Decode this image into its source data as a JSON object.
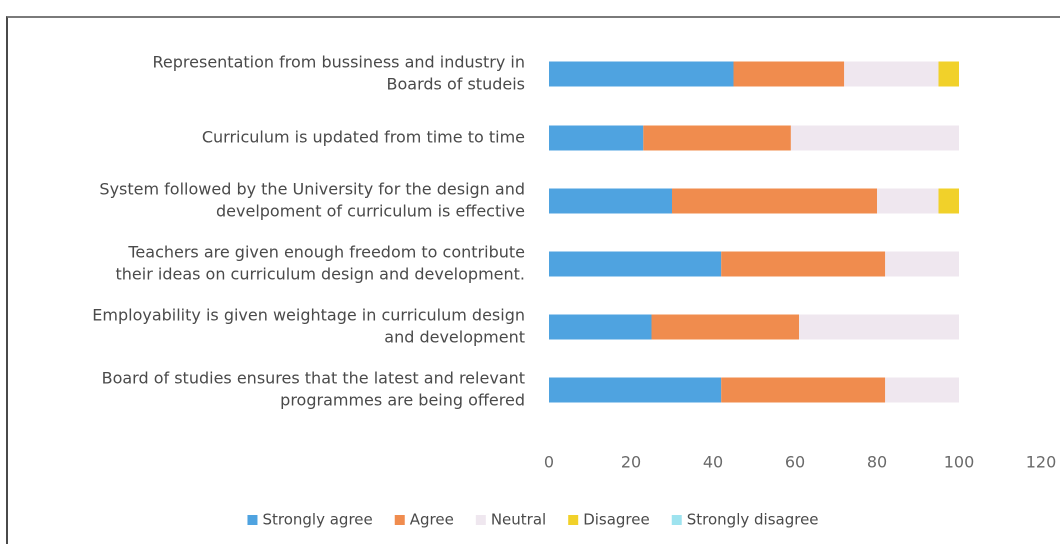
{
  "chart_data": {
    "type": "bar",
    "orientation": "horizontal",
    "stacked": true,
    "title": "",
    "xlabel": "",
    "ylabel": "",
    "xlim": [
      0,
      120
    ],
    "xticks": [
      "0",
      "20",
      "40",
      "60",
      "80",
      "100",
      "120"
    ],
    "grid": false,
    "legend_position": "bottom",
    "categories": [
      [
        "Representation  from bussiness and industry in",
        "Boards of studeis"
      ],
      [
        "Curriculum is updated from time to time"
      ],
      [
        "System followed by the University for the design and",
        "develpoment of curriculum is effective"
      ],
      [
        "Teachers are given enough freedom to contribute",
        "their ideas on curriculum design and development."
      ],
      [
        "Employability is given weightage in curriculum design",
        "and development"
      ],
      [
        "Board of studies ensures that the latest and relevant",
        "programmes are being offered"
      ]
    ],
    "series": [
      {
        "name": "Strongly agree",
        "color": "#4fa3e0",
        "values": [
          45,
          23,
          30,
          42,
          25,
          42
        ]
      },
      {
        "name": "Agree",
        "color": "#f08c4e",
        "values": [
          27,
          36,
          50,
          40,
          36,
          40
        ]
      },
      {
        "name": "Neutral",
        "color": "#efe7ef",
        "values": [
          23,
          41,
          15,
          18,
          39,
          18
        ]
      },
      {
        "name": "Disagree",
        "color": "#f1d12a",
        "values": [
          5,
          0,
          5,
          0,
          0,
          0
        ]
      },
      {
        "name": "Strongly disagree",
        "color": "#9ee3ef",
        "values": [
          0,
          0,
          0,
          0,
          0,
          0
        ]
      }
    ]
  }
}
